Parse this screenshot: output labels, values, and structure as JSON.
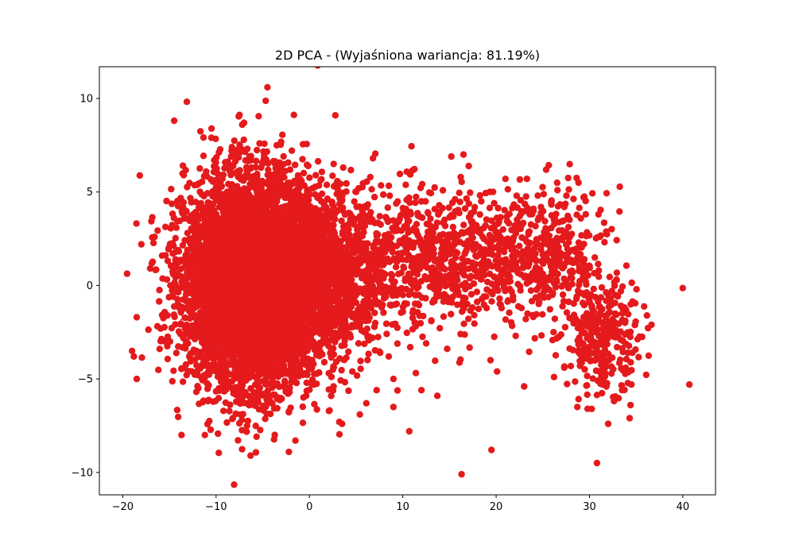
{
  "chart_data": {
    "type": "scatter",
    "title": "2D PCA - (Wyjaśniona wariancja: 81.19%)",
    "xlabel": "",
    "ylabel": "",
    "xlim": [
      -22.5,
      43.5
    ],
    "ylim": [
      -11.2,
      11.7
    ],
    "xticks": [
      -20,
      -10,
      0,
      10,
      20,
      30,
      40
    ],
    "yticks": [
      -10,
      -5,
      0,
      5,
      10
    ],
    "grid": false,
    "legend": "none",
    "colors": {
      "points": "#e41a1c",
      "centroids": "#e41a1c"
    },
    "series": [
      {
        "marker": "circle",
        "approx_point_count": 9000,
        "clusters": [
          {
            "center": [
              -6.0,
              0.2
            ],
            "spread": [
              3.6,
              2.7
            ],
            "share": 0.72
          },
          {
            "center": [
              1.5,
              0.5
            ],
            "spread": [
              3.5,
              2.4
            ],
            "share": 0.12
          },
          {
            "center": [
              13.0,
              1.5
            ],
            "spread": [
              5.0,
              1.8
            ],
            "share": 0.08
          },
          {
            "center": [
              25.0,
              1.5
            ],
            "spread": [
              3.5,
              1.8
            ],
            "share": 0.05
          },
          {
            "center": [
              31.5,
              -2.8
            ],
            "spread": [
              2.0,
              1.4
            ],
            "share": 0.03
          }
        ],
        "points": [
          [
            -4.5,
            10.6
          ],
          [
            -7.0,
            8.7
          ],
          [
            -7.2,
            8.6
          ],
          [
            -10.5,
            7.9
          ],
          [
            -8.3,
            7.4
          ],
          [
            -3.5,
            7.5
          ],
          [
            6.8,
            6.8
          ],
          [
            16.5,
            7.0
          ],
          [
            15.2,
            6.9
          ],
          [
            2.6,
            6.5
          ],
          [
            23.3,
            5.7
          ],
          [
            21.0,
            5.7
          ],
          [
            -18.0,
            2.2
          ],
          [
            -18.5,
            -1.7
          ],
          [
            -19.0,
            -3.5
          ],
          [
            -18.8,
            -3.8
          ],
          [
            -18.5,
            -5.0
          ],
          [
            -13.7,
            -8.0
          ],
          [
            -11.2,
            -8.0
          ],
          [
            -6.3,
            -9.1
          ],
          [
            -2.2,
            -8.9
          ],
          [
            -1.5,
            -8.3
          ],
          [
            3.2,
            -7.3
          ],
          [
            3.5,
            -7.4
          ],
          [
            5.4,
            -6.9
          ],
          [
            9.0,
            -6.5
          ],
          [
            10.7,
            -7.8
          ],
          [
            12.0,
            -5.6
          ],
          [
            13.7,
            -5.9
          ],
          [
            16.3,
            -10.1
          ],
          [
            19.5,
            -8.8
          ],
          [
            30.8,
            -9.5
          ],
          [
            28.7,
            -6.5
          ],
          [
            29.8,
            -6.6
          ],
          [
            32.0,
            -7.4
          ],
          [
            34.3,
            -7.1
          ],
          [
            34.4,
            -6.4
          ],
          [
            40.7,
            -5.3
          ],
          [
            34.6,
            -3.6
          ],
          [
            34.5,
            -5.3
          ],
          [
            33.5,
            -5.6
          ],
          [
            20.1,
            -4.6
          ],
          [
            23.0,
            -5.4
          ],
          [
            16.2,
            -2.6
          ],
          [
            19.4,
            -4.0
          ],
          [
            22.1,
            -2.7
          ],
          [
            26.2,
            -4.9
          ],
          [
            27.3,
            -4.4
          ],
          [
            16.9,
            -1.0
          ],
          [
            16.3,
            0.7
          ],
          [
            24.0,
            4.1
          ],
          [
            27.3,
            4.2
          ],
          [
            31.0,
            0.8
          ],
          [
            32.0,
            -0.5
          ],
          [
            26.5,
            0.2
          ],
          [
            12.5,
            -3.1
          ],
          [
            10.8,
            -3.3
          ],
          [
            8.5,
            -3.8
          ],
          [
            9.0,
            -5.0
          ],
          [
            6.1,
            -6.3
          ],
          [
            4.6,
            -4.6
          ],
          [
            7.2,
            -5.6
          ],
          [
            14.2,
            0.1
          ],
          [
            12.0,
            4.5
          ],
          [
            8.6,
            4.8
          ],
          [
            5.0,
            5.0
          ],
          [
            18.3,
            2.8
          ],
          [
            20.3,
            3.4
          ],
          [
            22.2,
            4.8
          ],
          [
            25.5,
            2.2
          ],
          [
            28.5,
            1.8
          ]
        ]
      },
      {
        "name": "",
        "marker": "x",
        "points": [
          [
            -9.4,
            2.1
          ],
          [
            -4.7,
            2.7
          ],
          [
            -0.1,
            1.1
          ],
          [
            3.7,
            0.3
          ],
          [
            -5.1,
            -0.9
          ],
          [
            -13.5,
            -1.7
          ],
          [
            -8.1,
            -2.7
          ],
          [
            -2.1,
            -2.4
          ],
          [
            18.1,
            1.8
          ],
          [
            31.1,
            -2.6
          ]
        ]
      }
    ]
  }
}
